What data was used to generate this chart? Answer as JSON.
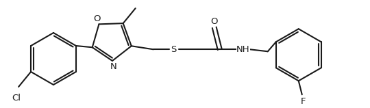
{
  "bg_color": "#ffffff",
  "line_color": "#1a1a1a",
  "line_width": 1.5,
  "font_size": 9.5,
  "figsize": [
    5.4,
    1.58
  ],
  "dpi": 100,
  "xlim": [
    0,
    540
  ],
  "ylim": [
    0,
    158
  ]
}
